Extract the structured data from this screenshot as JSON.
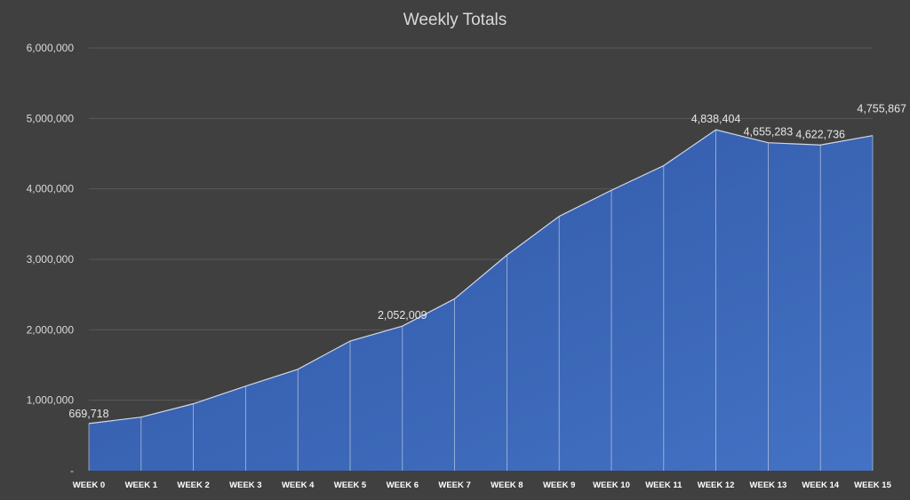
{
  "chart_data": {
    "type": "area",
    "title": "Weekly Totals",
    "xlabel": "",
    "ylabel": "",
    "categories": [
      "WEEK 0",
      "WEEK 1",
      "WEEK 2",
      "WEEK 3",
      "WEEK 4",
      "WEEK 5",
      "WEEK 6",
      "WEEK 7",
      "WEEK 8",
      "WEEK 9",
      "WEEK 10",
      "WEEK 11",
      "WEEK 12",
      "WEEK 13",
      "WEEK 14",
      "WEEK 15"
    ],
    "series": [
      {
        "values": [
          669718,
          760000,
          950000,
          1200000,
          1440000,
          1840000,
          2052009,
          2440000,
          3060000,
          3610000,
          3980000,
          4330000,
          4838404,
          4655283,
          4622736,
          4755867
        ]
      }
    ],
    "data_labels": [
      {
        "index": 0,
        "text": "669,718"
      },
      {
        "index": 6,
        "text": "2,052,009"
      },
      {
        "index": 12,
        "text": "4,838,404"
      },
      {
        "index": 13,
        "text": "4,655,283"
      },
      {
        "index": 14,
        "text": "4,622,736"
      },
      {
        "index": 15,
        "text": "4,755,867"
      }
    ],
    "ylim": [
      0,
      6000000
    ],
    "yticks": [
      {
        "value": 0,
        "label": "-"
      },
      {
        "value": 1000000,
        "label": "1,000,000"
      },
      {
        "value": 2000000,
        "label": "2,000,000"
      },
      {
        "value": 3000000,
        "label": "3,000,000"
      },
      {
        "value": 4000000,
        "label": "4,000,000"
      },
      {
        "value": 5000000,
        "label": "5,000,000"
      },
      {
        "value": 6000000,
        "label": "6,000,000"
      }
    ],
    "grid": true,
    "legend": "none",
    "colors": {
      "background": "#404040",
      "area_fill": "#4472c4",
      "area_fill_dark": "#2f55a3",
      "outline": "#d0d8ea",
      "gridline": "#5a5a5a",
      "text": "#d9d9d9"
    }
  }
}
